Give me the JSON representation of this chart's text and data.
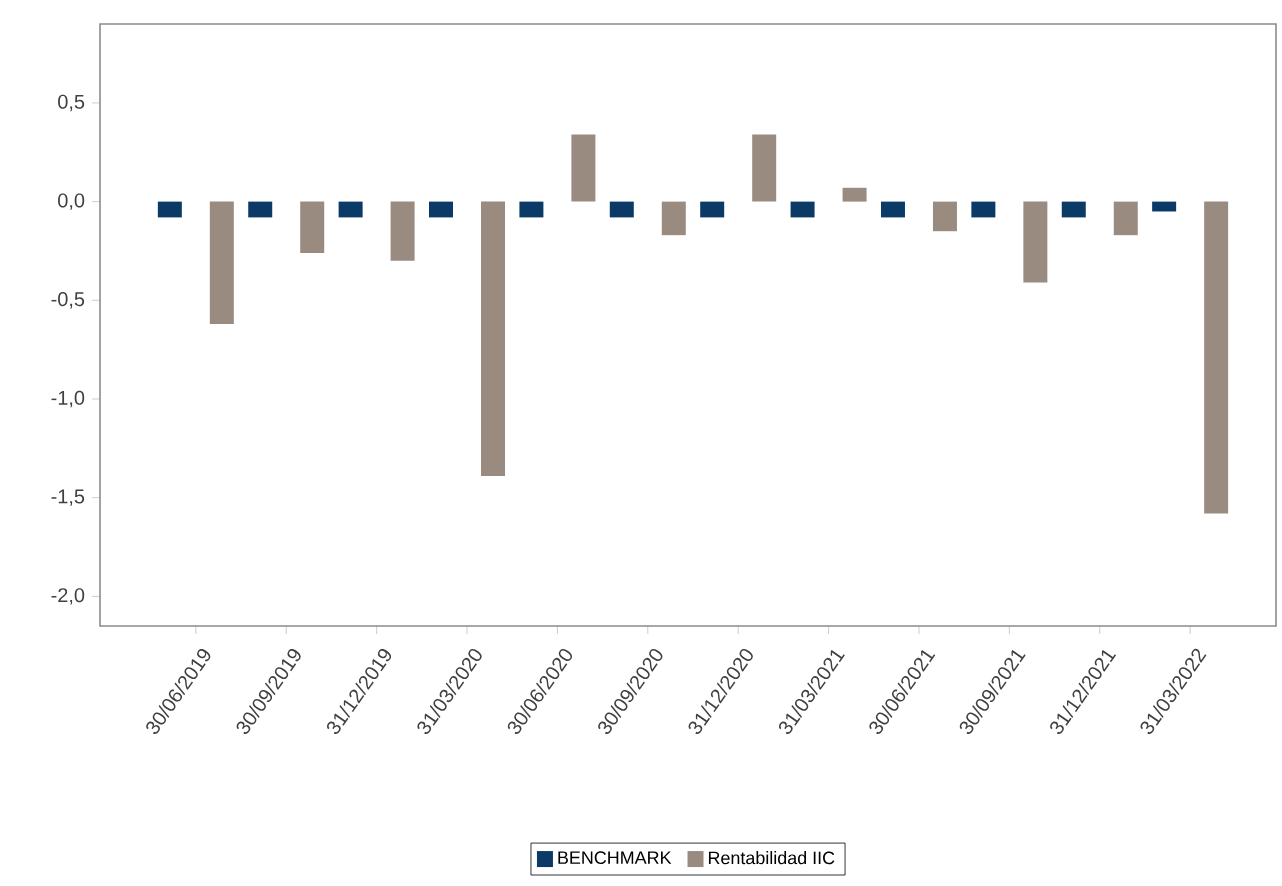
{
  "chart_data": {
    "type": "bar",
    "categories": [
      "30/06/2019",
      "30/09/2019",
      "31/12/2019",
      "31/03/2020",
      "30/06/2020",
      "30/09/2020",
      "31/12/2020",
      "31/03/2021",
      "30/06/2021",
      "30/09/2021",
      "31/12/2021",
      "31/03/2022"
    ],
    "series": [
      {
        "name": "BENCHMARK",
        "color": "#0b3a66",
        "values": [
          -0.08,
          -0.08,
          -0.08,
          -0.08,
          -0.08,
          -0.08,
          -0.08,
          -0.08,
          -0.08,
          -0.08,
          -0.08,
          -0.05
        ]
      },
      {
        "name": "Rentabilidad IIC",
        "color": "#998b80",
        "values": [
          -0.62,
          -0.26,
          -0.3,
          -1.39,
          0.34,
          -0.17,
          0.34,
          0.07,
          -0.15,
          -0.41,
          -0.17,
          -1.58
        ]
      }
    ],
    "ylim": [
      -2.15,
      0.9
    ],
    "yticks": [
      {
        "value": -2.0,
        "label": "-2,0"
      },
      {
        "value": -1.5,
        "label": "-1,5"
      },
      {
        "value": -1.0,
        "label": "-1,0"
      },
      {
        "value": -0.5,
        "label": "-0,5"
      },
      {
        "value": 0.0,
        "label": "0,0"
      },
      {
        "value": 0.5,
        "label": "0,5"
      }
    ],
    "grid": false,
    "legend": "bottom"
  }
}
